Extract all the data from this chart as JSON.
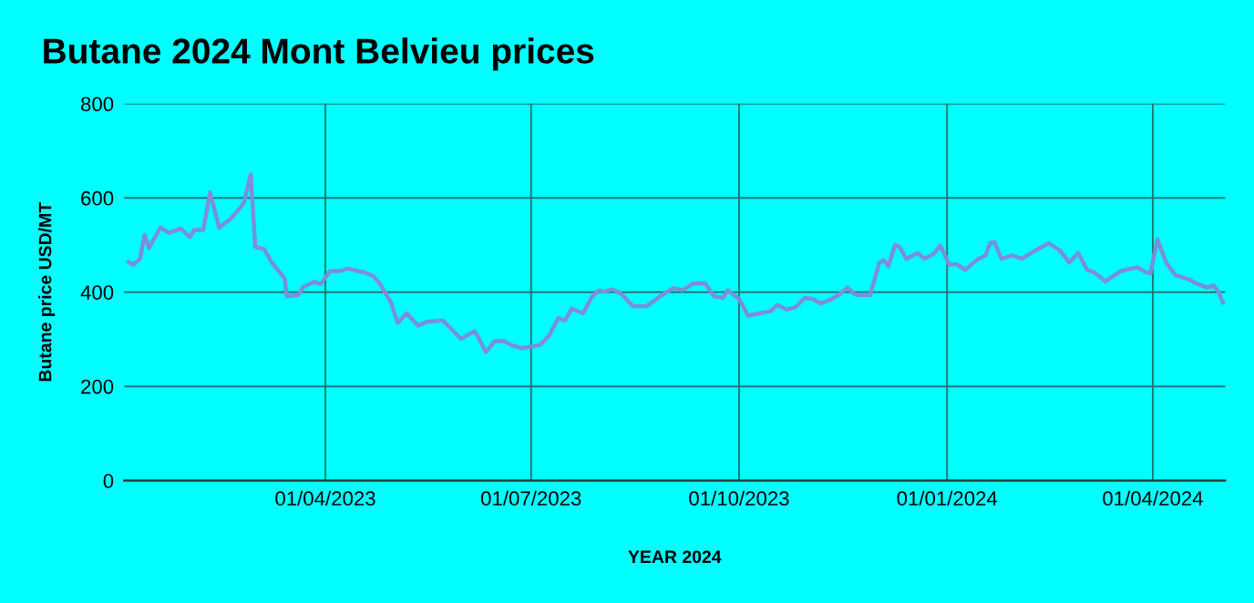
{
  "chart_data": {
    "type": "line",
    "title": "Butane 2024 Mont Belvieu prices",
    "xlabel": "YEAR 2024",
    "ylabel": "Butane price USD/MT",
    "x": [
      "2023-01-04",
      "2023-01-06",
      "2023-01-09",
      "2023-01-11",
      "2023-01-13",
      "2023-01-18",
      "2023-01-22",
      "2023-01-27",
      "2023-01-31",
      "2023-02-02",
      "2023-02-06",
      "2023-02-09",
      "2023-02-13",
      "2023-02-18",
      "2023-02-22",
      "2023-02-24",
      "2023-02-27",
      "2023-03-01",
      "2023-03-05",
      "2023-03-08",
      "2023-03-14",
      "2023-03-15",
      "2023-03-20",
      "2023-03-22",
      "2023-03-27",
      "2023-03-30",
      "2023-04-03",
      "2023-04-08",
      "2023-04-11",
      "2023-04-18",
      "2023-04-22",
      "2023-04-25",
      "2023-04-30",
      "2023-05-03",
      "2023-05-07",
      "2023-05-12",
      "2023-05-16",
      "2023-05-23",
      "2023-05-31",
      "2023-06-06",
      "2023-06-08",
      "2023-06-11",
      "2023-06-15",
      "2023-06-19",
      "2023-06-23",
      "2023-06-27",
      "2023-07-05",
      "2023-07-09",
      "2023-07-13",
      "2023-07-16",
      "2023-07-19",
      "2023-07-24",
      "2023-07-28",
      "2023-07-31",
      "2023-08-02",
      "2023-08-06",
      "2023-08-10",
      "2023-08-15",
      "2023-08-21",
      "2023-08-27",
      "2023-09-02",
      "2023-09-06",
      "2023-09-11",
      "2023-09-16",
      "2023-09-20",
      "2023-09-24",
      "2023-09-26",
      "2023-10-01",
      "2023-10-05",
      "2023-10-10",
      "2023-10-15",
      "2023-10-18",
      "2023-10-22",
      "2023-10-26",
      "2023-10-30",
      "2023-11-03",
      "2023-11-06",
      "2023-11-10",
      "2023-11-14",
      "2023-11-18",
      "2023-11-21",
      "2023-11-23",
      "2023-11-28",
      "2023-12-02",
      "2023-12-04",
      "2023-12-06",
      "2023-12-09",
      "2023-12-11",
      "2023-12-14",
      "2023-12-19",
      "2023-12-22",
      "2023-12-26",
      "2023-12-29",
      "2024-01-02",
      "2024-01-05",
      "2024-01-09",
      "2024-01-14",
      "2024-01-18",
      "2024-01-20",
      "2024-01-22",
      "2024-01-25",
      "2024-01-30",
      "2024-02-03",
      "2024-02-10",
      "2024-02-15",
      "2024-02-20",
      "2024-02-24",
      "2024-02-28",
      "2024-03-03",
      "2024-03-06",
      "2024-03-11",
      "2024-03-18",
      "2024-03-25",
      "2024-03-29",
      "2024-03-31",
      "2024-04-03",
      "2024-04-07",
      "2024-04-11",
      "2024-04-17",
      "2024-04-20",
      "2024-04-25",
      "2024-04-28",
      "2024-04-30",
      "2024-05-02"
    ],
    "series": [
      {
        "color": "#7a8fd8",
        "values": [
          464,
          458,
          470,
          522,
          494,
          537,
          526,
          535,
          517,
          532,
          532,
          612,
          537,
          555,
          577,
          590,
          650,
          496,
          491,
          465,
          429,
          391,
          394,
          410,
          422,
          417,
          445,
          445,
          450,
          442,
          435,
          419,
          378,
          335,
          355,
          329,
          337,
          340,
          301,
          317,
          301,
          273,
          296,
          296,
          286,
          281,
          288,
          308,
          345,
          340,
          365,
          355,
          391,
          404,
          401,
          406,
          396,
          370,
          370,
          391,
          409,
          404,
          419,
          419,
          391,
          388,
          404,
          386,
          350,
          355,
          360,
          373,
          363,
          368,
          388,
          385,
          376,
          383,
          394,
          410,
          396,
          394,
          394,
          462,
          468,
          455,
          500,
          496,
          471,
          483,
          471,
          481,
          499,
          458,
          460,
          447,
          468,
          478,
          504,
          506,
          471,
          478,
          471,
          491,
          504,
          488,
          463,
          483,
          447,
          442,
          423,
          445,
          453,
          442,
          440,
          512,
          462,
          436,
          427,
          419,
          410,
          414,
          401,
          378
        ]
      }
    ],
    "xlim": [
      "2023-01-02",
      "2024-05-03"
    ],
    "xticks": [
      {
        "value": "2023-04-01",
        "label": "01/04/2023"
      },
      {
        "value": "2023-07-01",
        "label": "01/07/2023"
      },
      {
        "value": "2023-10-01",
        "label": "01/10/2023"
      },
      {
        "value": "2024-01-01",
        "label": "01/01/2024"
      },
      {
        "value": "2024-04-01",
        "label": "01/04/2024"
      }
    ],
    "ylim": [
      0,
      800
    ],
    "yticks": [
      0,
      200,
      400,
      600,
      800
    ],
    "grid": true,
    "line_style": "solid",
    "marker": "none"
  }
}
